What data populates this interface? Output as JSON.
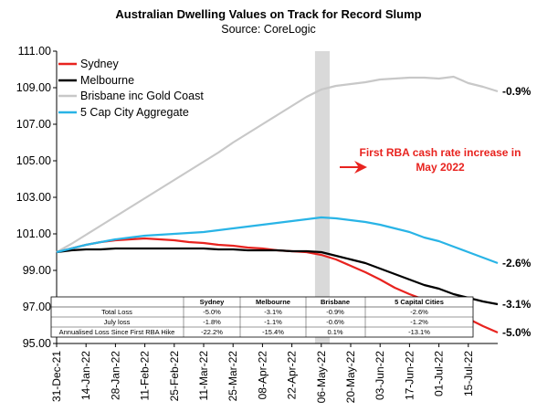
{
  "chart_data": {
    "type": "line",
    "title": "Australian Dwelling Values on Track for Record Slump",
    "subtitle": "Source: CoreLogic",
    "ylim": [
      95.0,
      111.0
    ],
    "y_ticks": [
      "95.00",
      "97.00",
      "99.00",
      "101.00",
      "103.00",
      "105.00",
      "107.00",
      "109.00",
      "111.00"
    ],
    "x_start": "2021-12-31",
    "x_end": "2022-07-29",
    "x_tick_labels": [
      "31-Dec-21",
      "14-Jan-22",
      "28-Jan-22",
      "11-Feb-22",
      "25-Feb-22",
      "11-Mar-22",
      "25-Mar-22",
      "08-Apr-22",
      "22-Apr-22",
      "06-May-22",
      "20-May-22",
      "03-Jun-22",
      "17-Jun-22",
      "01-Jul-22",
      "15-Jul-22"
    ],
    "x_tick_dates": [
      "2021-12-31",
      "2022-01-14",
      "2022-01-28",
      "2022-02-11",
      "2022-02-25",
      "2022-03-11",
      "2022-03-25",
      "2022-04-08",
      "2022-04-22",
      "2022-05-06",
      "2022-05-20",
      "2022-06-03",
      "2022-06-17",
      "2022-07-01",
      "2022-07-15"
    ],
    "grid": false,
    "legend_position": "top-left",
    "shaded_band": {
      "from": "2022-05-03",
      "to": "2022-05-10",
      "color": "#d9d9d9"
    },
    "series": [
      {
        "name": "Sydney",
        "color": "#e8231f",
        "end_label": "-5.0%",
        "points": [
          [
            "2021-12-31",
            100.0
          ],
          [
            "2022-01-07",
            100.2
          ],
          [
            "2022-01-14",
            100.4
          ],
          [
            "2022-01-21",
            100.55
          ],
          [
            "2022-01-28",
            100.65
          ],
          [
            "2022-02-04",
            100.7
          ],
          [
            "2022-02-11",
            100.75
          ],
          [
            "2022-02-18",
            100.7
          ],
          [
            "2022-02-25",
            100.65
          ],
          [
            "2022-03-04",
            100.55
          ],
          [
            "2022-03-11",
            100.5
          ],
          [
            "2022-03-18",
            100.4
          ],
          [
            "2022-03-25",
            100.35
          ],
          [
            "2022-04-01",
            100.25
          ],
          [
            "2022-04-08",
            100.2
          ],
          [
            "2022-04-15",
            100.1
          ],
          [
            "2022-04-22",
            100.05
          ],
          [
            "2022-04-29",
            100.0
          ],
          [
            "2022-05-06",
            99.85
          ],
          [
            "2022-05-13",
            99.6
          ],
          [
            "2022-05-20",
            99.25
          ],
          [
            "2022-05-27",
            98.9
          ],
          [
            "2022-06-03",
            98.5
          ],
          [
            "2022-06-10",
            98.05
          ],
          [
            "2022-06-17",
            97.7
          ],
          [
            "2022-06-24",
            97.4
          ],
          [
            "2022-07-01",
            97.1
          ],
          [
            "2022-07-08",
            96.7
          ],
          [
            "2022-07-15",
            96.35
          ],
          [
            "2022-07-22",
            95.95
          ],
          [
            "2022-07-29",
            95.6
          ]
        ]
      },
      {
        "name": "Melbourne",
        "color": "#000000",
        "end_label": "-3.1%",
        "points": [
          [
            "2021-12-31",
            100.0
          ],
          [
            "2022-01-07",
            100.1
          ],
          [
            "2022-01-14",
            100.15
          ],
          [
            "2022-01-21",
            100.15
          ],
          [
            "2022-01-28",
            100.2
          ],
          [
            "2022-02-04",
            100.2
          ],
          [
            "2022-02-11",
            100.2
          ],
          [
            "2022-02-18",
            100.2
          ],
          [
            "2022-02-25",
            100.2
          ],
          [
            "2022-03-04",
            100.2
          ],
          [
            "2022-03-11",
            100.2
          ],
          [
            "2022-03-18",
            100.15
          ],
          [
            "2022-03-25",
            100.15
          ],
          [
            "2022-04-01",
            100.1
          ],
          [
            "2022-04-08",
            100.1
          ],
          [
            "2022-04-15",
            100.1
          ],
          [
            "2022-04-22",
            100.05
          ],
          [
            "2022-04-29",
            100.05
          ],
          [
            "2022-05-06",
            100.0
          ],
          [
            "2022-05-13",
            99.8
          ],
          [
            "2022-05-20",
            99.6
          ],
          [
            "2022-05-27",
            99.4
          ],
          [
            "2022-06-03",
            99.1
          ],
          [
            "2022-06-10",
            98.8
          ],
          [
            "2022-06-17",
            98.5
          ],
          [
            "2022-06-24",
            98.2
          ],
          [
            "2022-07-01",
            98.0
          ],
          [
            "2022-07-08",
            97.7
          ],
          [
            "2022-07-15",
            97.5
          ],
          [
            "2022-07-22",
            97.3
          ],
          [
            "2022-07-29",
            97.15
          ]
        ]
      },
      {
        "name": "Brisbane inc Gold Coast",
        "color": "#c8c8c8",
        "end_label": "-0.9%",
        "points": [
          [
            "2021-12-31",
            100.0
          ],
          [
            "2022-01-07",
            100.45
          ],
          [
            "2022-01-14",
            100.95
          ],
          [
            "2022-01-21",
            101.45
          ],
          [
            "2022-01-28",
            101.95
          ],
          [
            "2022-02-04",
            102.45
          ],
          [
            "2022-02-11",
            102.95
          ],
          [
            "2022-02-18",
            103.45
          ],
          [
            "2022-02-25",
            103.95
          ],
          [
            "2022-03-04",
            104.45
          ],
          [
            "2022-03-11",
            104.95
          ],
          [
            "2022-03-18",
            105.45
          ],
          [
            "2022-03-25",
            106.0
          ],
          [
            "2022-04-01",
            106.5
          ],
          [
            "2022-04-08",
            107.0
          ],
          [
            "2022-04-15",
            107.5
          ],
          [
            "2022-04-22",
            108.0
          ],
          [
            "2022-04-29",
            108.5
          ],
          [
            "2022-05-06",
            108.9
          ],
          [
            "2022-05-13",
            109.1
          ],
          [
            "2022-05-20",
            109.2
          ],
          [
            "2022-05-27",
            109.3
          ],
          [
            "2022-06-03",
            109.45
          ],
          [
            "2022-06-10",
            109.5
          ],
          [
            "2022-06-17",
            109.55
          ],
          [
            "2022-06-24",
            109.55
          ],
          [
            "2022-07-01",
            109.5
          ],
          [
            "2022-07-08",
            109.6
          ],
          [
            "2022-07-15",
            109.25
          ],
          [
            "2022-07-22",
            109.05
          ],
          [
            "2022-07-29",
            108.8
          ]
        ]
      },
      {
        "name": "5 Cap City Aggregate",
        "color": "#29b4e6",
        "end_label": "-2.6%",
        "points": [
          [
            "2021-12-31",
            100.0
          ],
          [
            "2022-01-07",
            100.2
          ],
          [
            "2022-01-14",
            100.4
          ],
          [
            "2022-01-21",
            100.55
          ],
          [
            "2022-01-28",
            100.7
          ],
          [
            "2022-02-04",
            100.8
          ],
          [
            "2022-02-11",
            100.9
          ],
          [
            "2022-02-18",
            100.95
          ],
          [
            "2022-02-25",
            101.0
          ],
          [
            "2022-03-04",
            101.05
          ],
          [
            "2022-03-11",
            101.1
          ],
          [
            "2022-03-18",
            101.2
          ],
          [
            "2022-03-25",
            101.3
          ],
          [
            "2022-04-01",
            101.4
          ],
          [
            "2022-04-08",
            101.5
          ],
          [
            "2022-04-15",
            101.6
          ],
          [
            "2022-04-22",
            101.7
          ],
          [
            "2022-04-29",
            101.8
          ],
          [
            "2022-05-06",
            101.9
          ],
          [
            "2022-05-13",
            101.85
          ],
          [
            "2022-05-20",
            101.75
          ],
          [
            "2022-05-27",
            101.65
          ],
          [
            "2022-06-03",
            101.5
          ],
          [
            "2022-06-10",
            101.3
          ],
          [
            "2022-06-17",
            101.1
          ],
          [
            "2022-06-24",
            100.8
          ],
          [
            "2022-07-01",
            100.6
          ],
          [
            "2022-07-08",
            100.3
          ],
          [
            "2022-07-15",
            100.0
          ],
          [
            "2022-07-22",
            99.7
          ],
          [
            "2022-07-29",
            99.4
          ]
        ]
      }
    ],
    "annotation": {
      "lines": [
        "First RBA cash rate increase in",
        "May 2022"
      ],
      "color": "#e8231f",
      "arrow": "left"
    },
    "table": {
      "columns": [
        "",
        "Sydney",
        "Melbourne",
        "Brisbane",
        "5 Capital Cities"
      ],
      "rows": [
        [
          "Total Loss",
          "-5.0%",
          "-3.1%",
          "-0.9%",
          "-2.6%"
        ],
        [
          "July loss",
          "-1.8%",
          "-1.1%",
          "-0.6%",
          "-1.2%"
        ],
        [
          "Annualised Loss Since First RBA Hike",
          "-22.2%",
          "-15.4%",
          "0.1%",
          "-13.1%"
        ]
      ]
    }
  }
}
